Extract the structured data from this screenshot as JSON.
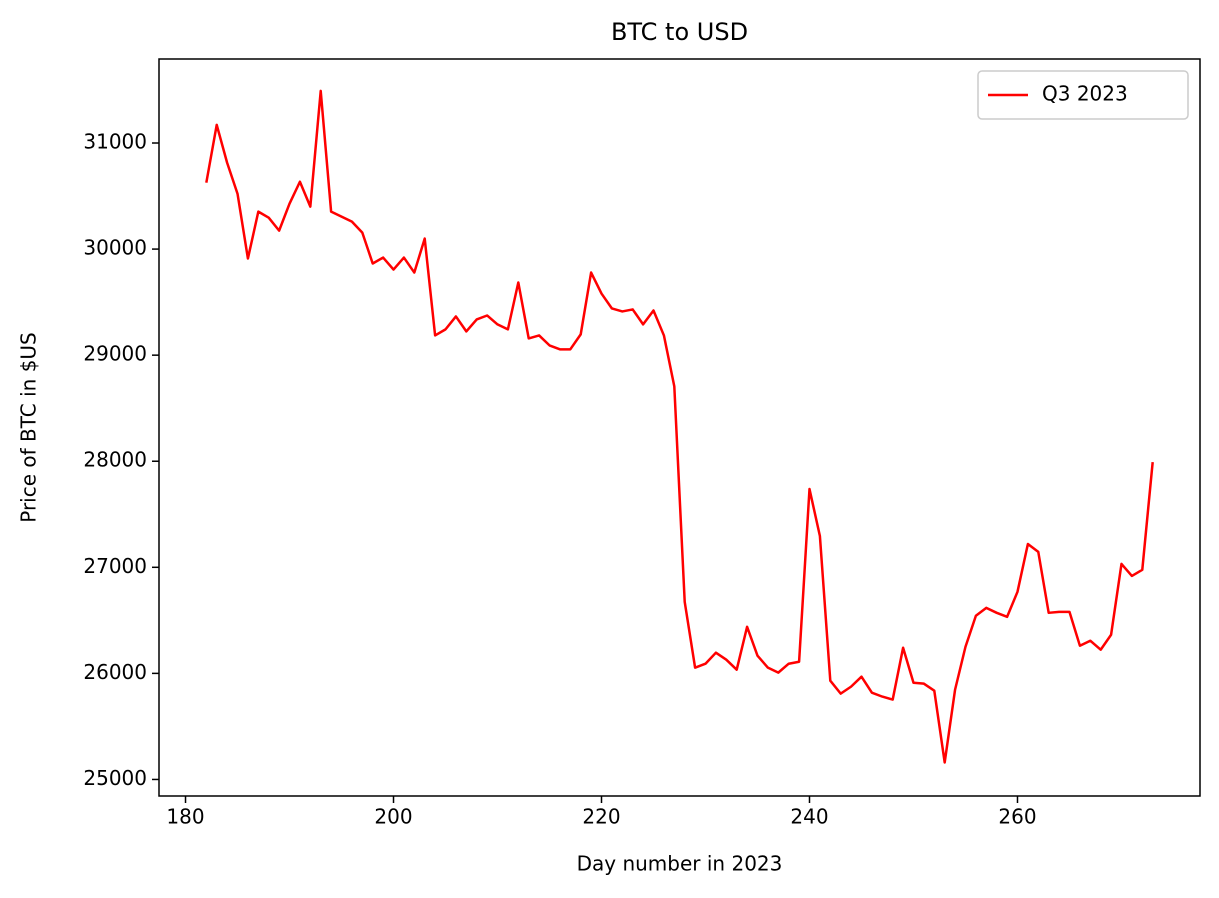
{
  "chart_data": {
    "type": "line",
    "title": "BTC to USD",
    "xlabel": "Day number in 2023",
    "ylabel": "Price of BTC in $US",
    "x": [
      182,
      183,
      184,
      185,
      186,
      187,
      188,
      189,
      190,
      191,
      192,
      193,
      194,
      195,
      196,
      197,
      198,
      199,
      200,
      201,
      202,
      203,
      204,
      205,
      206,
      207,
      208,
      209,
      210,
      211,
      212,
      213,
      214,
      215,
      216,
      217,
      218,
      219,
      220,
      221,
      222,
      223,
      224,
      225,
      226,
      227,
      228,
      229,
      230,
      231,
      232,
      233,
      234,
      235,
      236,
      237,
      238,
      239,
      240,
      241,
      242,
      243,
      244,
      245,
      246,
      247,
      248,
      249,
      250,
      251,
      252,
      253,
      254,
      255,
      256,
      257,
      258,
      259,
      260,
      261,
      262,
      263,
      264,
      265,
      266,
      267,
      268,
      269,
      270,
      271,
      272,
      273
    ],
    "series": [
      {
        "name": "Q3 2023",
        "color": "#ff0000",
        "values": [
          30626,
          31171,
          30814,
          30522,
          29911,
          30353,
          30296,
          30174,
          30428,
          30635,
          30400,
          31491,
          30353,
          30306,
          30259,
          30155,
          29864,
          29920,
          29807,
          29920,
          29779,
          30099,
          29186,
          29243,
          29365,
          29224,
          29337,
          29374,
          29290,
          29243,
          29685,
          29158,
          29186,
          29092,
          29055,
          29055,
          29196,
          29779,
          29581,
          29440,
          29412,
          29431,
          29290,
          29421,
          29186,
          28706,
          26675,
          26054,
          26091,
          26195,
          26129,
          26035,
          26439,
          26167,
          26054,
          26007,
          26091,
          26110,
          27738,
          27295,
          25931,
          25809,
          25875,
          25969,
          25818,
          25781,
          25753,
          26242,
          25912,
          25903,
          25837,
          25160,
          25847,
          26251,
          26543,
          26618,
          26571,
          26533,
          26769,
          27220,
          27145,
          26571,
          26580,
          26580,
          26261,
          26308,
          26223,
          26364,
          27032,
          26919,
          26976,
          27992
        ]
      }
    ],
    "xlim": [
      177.45,
      277.55
    ],
    "ylim": [
      24844,
      31792
    ],
    "xticks": [
      180,
      200,
      220,
      240,
      260
    ],
    "yticks": [
      25000,
      26000,
      27000,
      28000,
      29000,
      30000,
      31000
    ],
    "legend": "upper right"
  }
}
